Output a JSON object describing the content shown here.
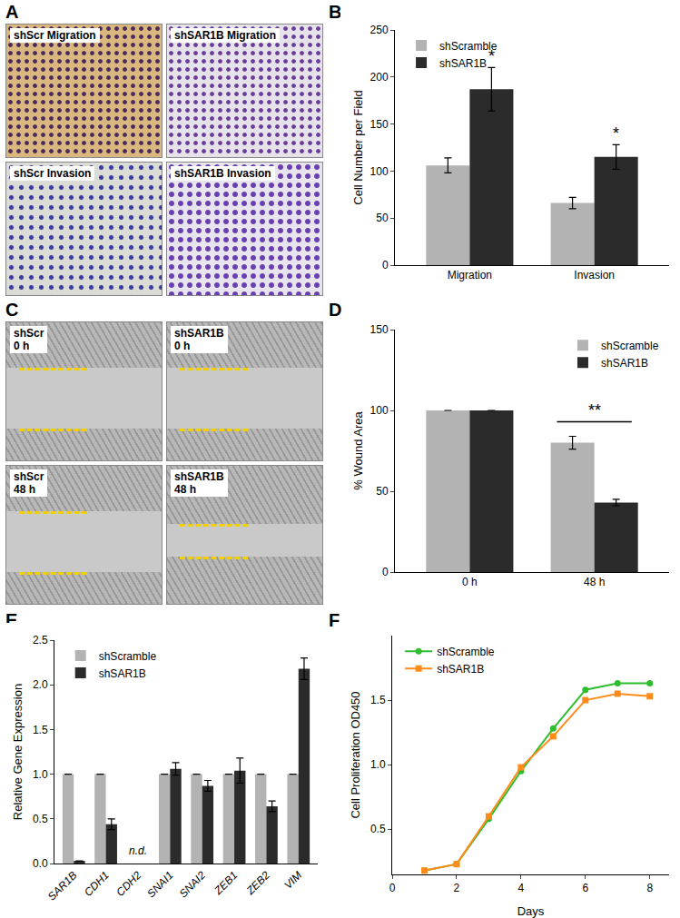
{
  "panel_labels": [
    "A",
    "B",
    "C",
    "D",
    "E",
    "F"
  ],
  "micrograph_panels": [
    {
      "labels": [
        [
          "shScr Migration"
        ],
        [
          "shSAR1B Migration"
        ],
        [
          "shScr Invasion"
        ],
        [
          "shSAR1B Invasion"
        ]
      ]
    },
    {
      "labels": [
        [
          "shScr",
          "0 h"
        ],
        [
          "shSAR1B",
          "0 h"
        ],
        [
          "shScr",
          "48 h"
        ],
        [
          "shSAR1B",
          "48 h"
        ]
      ]
    }
  ],
  "chart_data": [
    {
      "type": "bar",
      "y_label": "Cell Number per Field",
      "categories": [
        "Migration",
        "Invasion"
      ],
      "series": [
        {
          "name": "shScramble",
          "color": "#b3b3b3",
          "values": [
            106,
            66
          ],
          "errors": [
            8,
            6
          ]
        },
        {
          "name": "shSAR1B",
          "color": "#2b2b2b",
          "values": [
            187,
            115
          ],
          "errors": [
            23,
            13
          ]
        }
      ],
      "annotations": [
        {
          "text": "*",
          "category": "Migration",
          "series": "shSAR1B"
        },
        {
          "text": "*",
          "category": "Invasion",
          "series": "shSAR1B"
        }
      ],
      "ylim": [
        0,
        250
      ],
      "yticks": [
        0,
        50,
        100,
        150,
        200,
        250
      ],
      "grid": false,
      "legend": "top-left"
    },
    {
      "type": "bar",
      "y_label": "% Wound Area",
      "categories": [
        "0 h",
        "48 h"
      ],
      "series": [
        {
          "name": "shScramble",
          "color": "#b3b3b3",
          "values": [
            100,
            80
          ],
          "errors": [
            0,
            4
          ]
        },
        {
          "name": "shSAR1B",
          "color": "#2b2b2b",
          "values": [
            100,
            43
          ],
          "errors": [
            0,
            2
          ]
        }
      ],
      "annotations": [
        {
          "text": "**",
          "category": "48 h"
        }
      ],
      "ylim": [
        0,
        150
      ],
      "yticks": [
        0,
        50,
        100,
        150
      ],
      "grid": false,
      "legend": "top-right"
    },
    {
      "type": "bar",
      "y_label": "Relative Gene Expression",
      "categories": [
        "SAR1B",
        "CDH1",
        "CDH2",
        "SNAI1",
        "SNAI2",
        "ZEB1",
        "ZEB2",
        "VIM"
      ],
      "series": [
        {
          "name": "shScramble",
          "color": "#b3b3b3",
          "values": [
            1,
            1,
            null,
            1,
            1,
            1,
            1,
            1
          ],
          "errors": [
            0,
            0,
            null,
            0,
            0,
            0,
            0,
            0
          ]
        },
        {
          "name": "shSAR1B",
          "color": "#2b2b2b",
          "values": [
            0.03,
            0.44,
            null,
            1.06,
            0.87,
            1.04,
            0.64,
            2.18
          ],
          "errors": [
            0,
            0.06,
            null,
            0.07,
            0.06,
            0.14,
            0.06,
            0.12
          ]
        }
      ],
      "annotations": [
        {
          "text": "n.d.",
          "category": "CDH2"
        }
      ],
      "ylim": [
        0,
        2.5
      ],
      "yticks": [
        {
          "value": 0,
          "label": "0.0"
        },
        0.5,
        {
          "value": 1,
          "label": "1.0"
        },
        1.5,
        {
          "value": 2,
          "label": "2.0"
        },
        2.5
      ],
      "grid": false,
      "legend": "top-left"
    },
    {
      "type": "line",
      "x_label": "Days",
      "y_label": "Cell Proliferation OD450",
      "x": [
        1,
        2,
        3,
        4,
        5,
        6,
        7,
        8
      ],
      "series": [
        {
          "name": "shScramble",
          "color": "#2ebd2e",
          "marker": "circle",
          "values": [
            0.18,
            0.23,
            0.58,
            0.95,
            1.28,
            1.58,
            1.63,
            1.63
          ]
        },
        {
          "name": "shSAR1B",
          "color": "#ff8c1a",
          "marker": "square",
          "values": [
            0.18,
            0.23,
            0.6,
            0.98,
            1.22,
            1.5,
            1.55,
            1.53
          ]
        }
      ],
      "xlim": [
        0,
        8.6
      ],
      "xticks": [
        0,
        2,
        4,
        6,
        8
      ],
      "ylim": [
        0.15,
        2.0
      ],
      "yticks": [
        {
          "value": 0.5,
          "label": "0.5"
        },
        {
          "value": 1,
          "label": "1.0"
        },
        {
          "value": 1.5,
          "label": "1.5"
        }
      ],
      "grid": false,
      "legend": "top-left"
    }
  ]
}
